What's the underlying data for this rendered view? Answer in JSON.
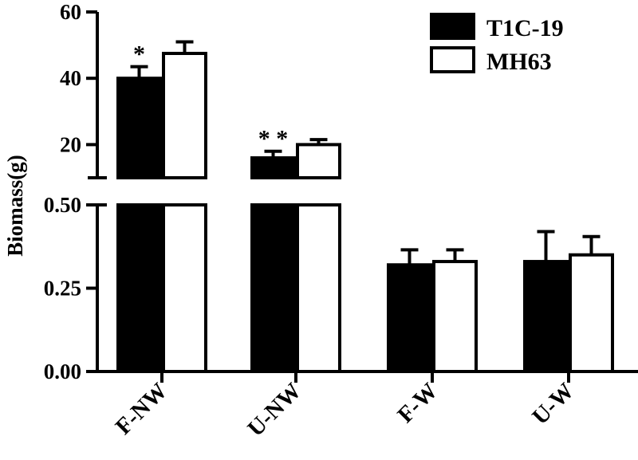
{
  "chart_data": {
    "type": "bar",
    "ylabel": "Biomass(g)",
    "categories": [
      "F-NW",
      "U-NW",
      "F-W",
      "U-W"
    ],
    "series": [
      {
        "name": "T1C-19",
        "color": "#000000",
        "values": [
          40,
          16,
          0.32,
          0.33
        ],
        "errors": [
          3.5,
          2,
          0.045,
          0.09
        ]
      },
      {
        "name": "MH63",
        "color": "#ffffff",
        "values": [
          47.5,
          20,
          0.33,
          0.35
        ],
        "errors": [
          3.5,
          1.5,
          0.035,
          0.055
        ]
      }
    ],
    "significance": [
      "*",
      "* *",
      "",
      ""
    ],
    "y_axis": {
      "broken": true,
      "lower_segment": {
        "range": [
          0,
          0.5
        ],
        "ticks": [
          "0.00",
          "0.25",
          "0.50"
        ]
      },
      "upper_segment": {
        "range": [
          10,
          60
        ],
        "ticks": [
          "20",
          "40",
          "60"
        ]
      }
    },
    "legend_position": "top-right",
    "grid": false
  }
}
